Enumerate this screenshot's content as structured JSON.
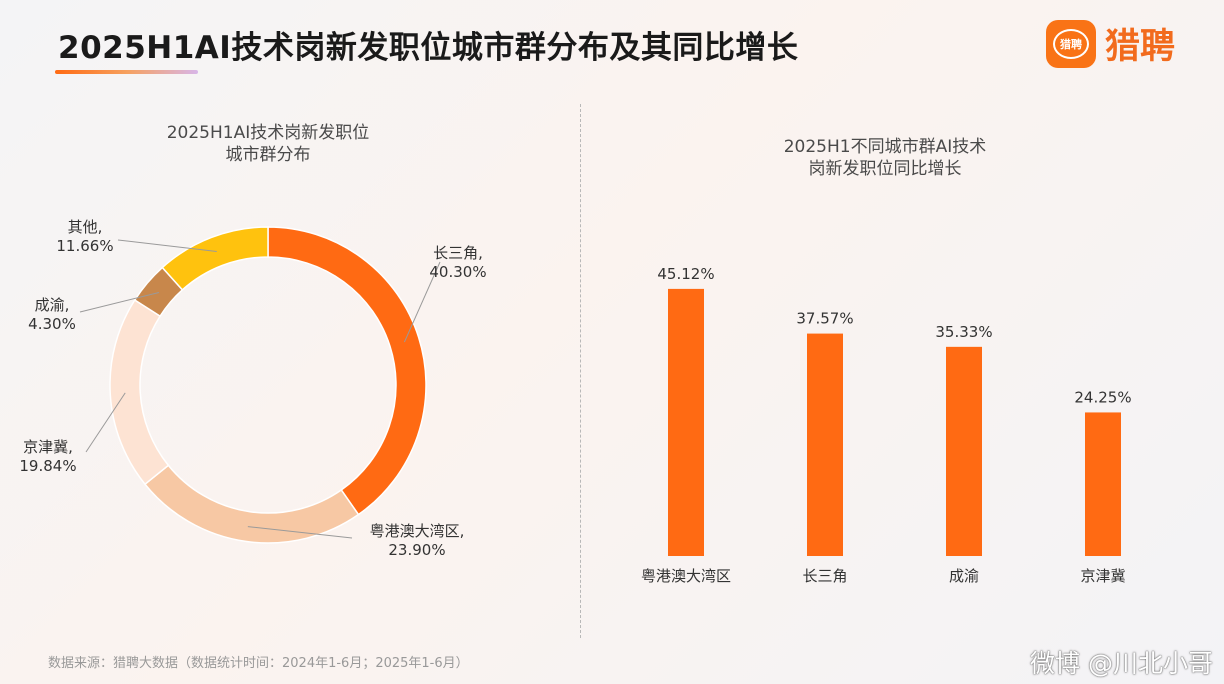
{
  "header": {
    "title": "2025H1AI技术岗新发职位城市群分布及其同比增长",
    "brand_name": "猎聘",
    "brand_logo_text": "猎聘"
  },
  "colors": {
    "accent": "#ff6a13",
    "bar": "#ff6a13",
    "slices": [
      "#ff6a13",
      "#f7c8a4",
      "#fde3d3",
      "#c8874b",
      "#ffc20e"
    ]
  },
  "chart_data": [
    {
      "type": "pie",
      "title": "2025H1AI技术岗新发职位城市群分布",
      "title_lines": [
        "2025H1AI技术岗新发职位",
        "城市群分布"
      ],
      "categories": [
        "长三角",
        "粤港澳大湾区",
        "京津冀",
        "成渝",
        "其他"
      ],
      "values": [
        40.3,
        23.9,
        19.84,
        4.3,
        11.66
      ],
      "labels": [
        "长三角,",
        "粤港澳大湾区,",
        "京津冀,",
        "成渝,",
        "其他,"
      ],
      "value_labels": [
        "40.30%",
        "23.90%",
        "19.84%",
        "4.30%",
        "11.66%"
      ]
    },
    {
      "type": "bar",
      "title": "2025H1不同城市群AI技术岗新发职位同比增长",
      "title_lines": [
        "2025H1不同城市群AI技术",
        "岗新发职位同比增长"
      ],
      "categories": [
        "粤港澳大湾区",
        "长三角",
        "成渝",
        "京津冀"
      ],
      "values": [
        45.12,
        37.57,
        35.33,
        24.25
      ],
      "value_labels": [
        "45.12%",
        "37.57%",
        "35.33%",
        "24.25%"
      ]
    }
  ],
  "footer": {
    "source": "数据来源：猎聘大数据（数据统计时间：2024年1-6月；2025年1-6月）",
    "watermark": "微博 @川北小哥"
  }
}
